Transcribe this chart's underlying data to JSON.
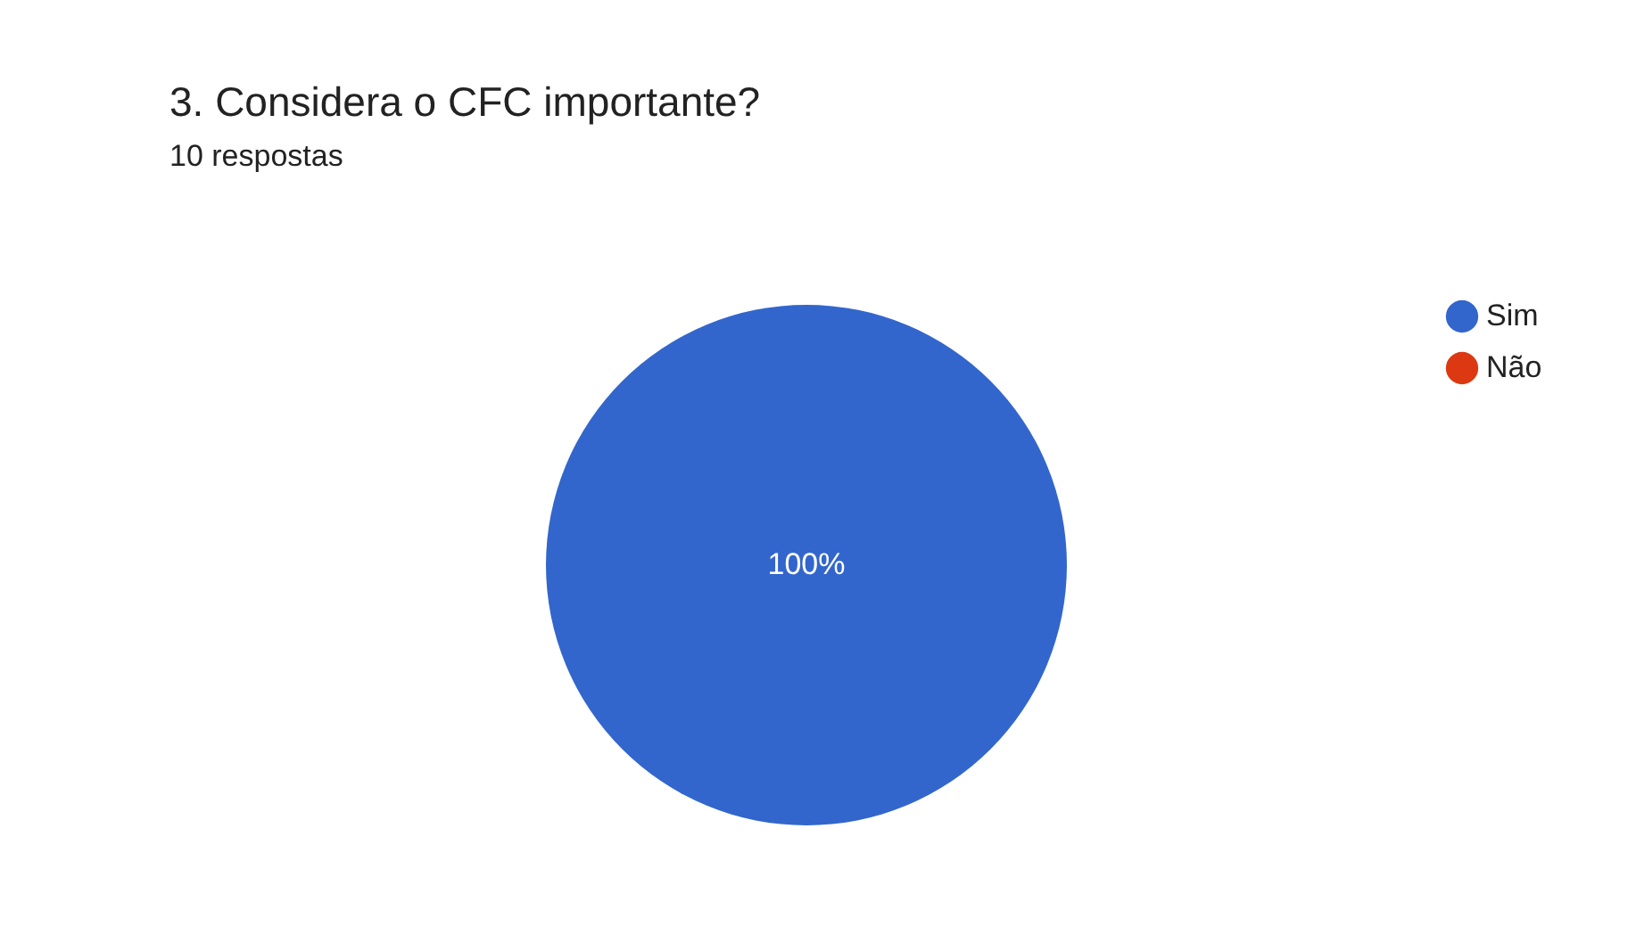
{
  "chart_data": {
    "type": "pie",
    "title": "3. Considera o CFC importante?",
    "subtitle": "10 respostas",
    "categories": [
      "Sim",
      "Não"
    ],
    "values": [
      100,
      0
    ],
    "colors": [
      "#3366cc",
      "#dc3912"
    ],
    "value_labels": [
      "100%",
      null
    ],
    "legend": "top right"
  }
}
